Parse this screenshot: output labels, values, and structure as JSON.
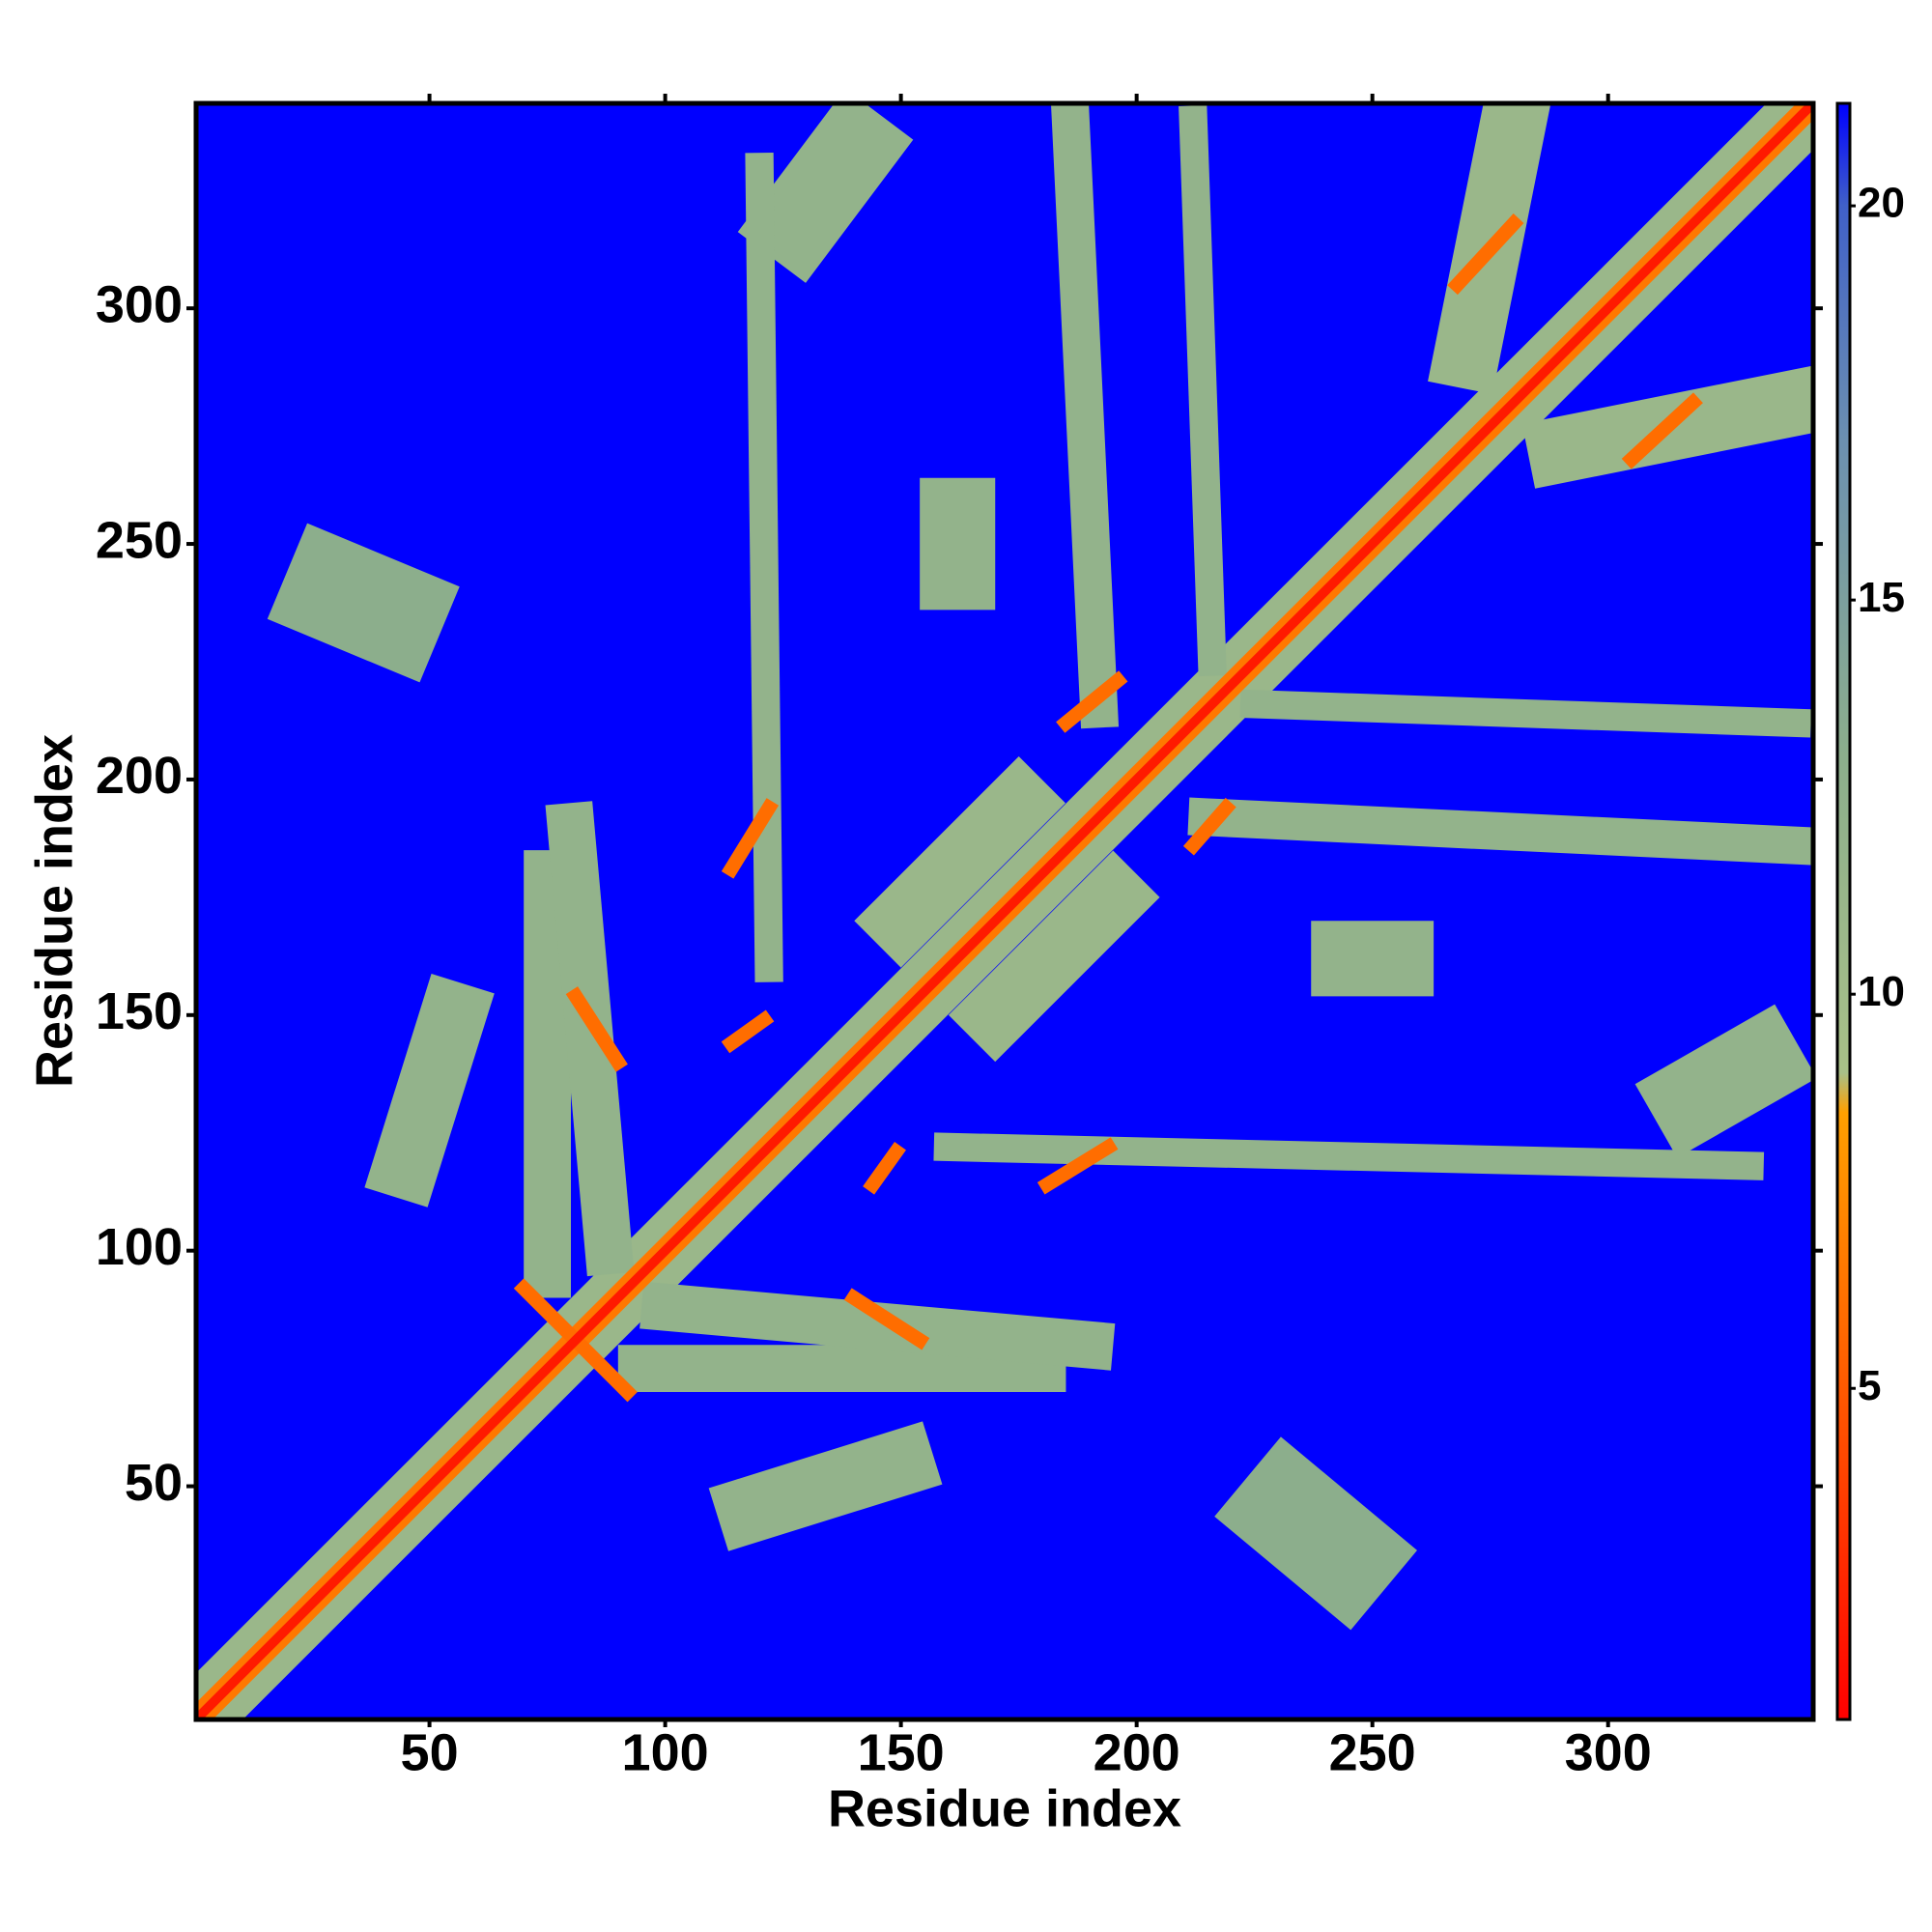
{
  "chart_data": {
    "type": "heatmap",
    "x_label": "Residue index",
    "y_label": "Residue index",
    "xlim": [
      0.5,
      343.5
    ],
    "ylim": [
      0.5,
      343.5
    ],
    "xticks": [
      50,
      100,
      150,
      200,
      250,
      300
    ],
    "yticks": [
      50,
      100,
      150,
      200,
      250,
      300
    ],
    "clim": [
      0.8,
      21.3
    ],
    "cticks": [
      5,
      10,
      15,
      20
    ],
    "colormap": [
      {
        "value": 0.8,
        "color": "#ff0000"
      },
      {
        "value": 4,
        "color": "#ff4500"
      },
      {
        "value": 8.5,
        "color": "#ffa000"
      },
      {
        "value": 9,
        "color": "#a8c088"
      },
      {
        "value": 13,
        "color": "#8cae8c"
      },
      {
        "value": 17,
        "color": "#6c90b0"
      },
      {
        "value": 20,
        "color": "#4060c8"
      },
      {
        "value": 21.3,
        "color": "#0000ff"
      }
    ],
    "patches": [
      {
        "from": [
          1,
          1
        ],
        "to": [
          343,
          343
        ],
        "width": 14,
        "value": 11
      },
      {
        "from": [
          232,
          45
        ],
        "to": [
          244,
          35
        ],
        "width": 22,
        "value": 13
      },
      {
        "from": [
          30,
          240
        ],
        "to": [
          42,
          235
        ],
        "width": 22,
        "value": 13
      },
      {
        "from": [
          245,
          162
        ],
        "to": [
          255,
          162
        ],
        "width": 16,
        "value": 12
      },
      {
        "from": [
          162,
          244
        ],
        "to": [
          162,
          256
        ],
        "width": 16,
        "value": 12
      },
      {
        "from": [
          318,
          132
        ],
        "to": [
          332,
          140
        ],
        "width": 18,
        "value": 12
      },
      {
        "from": [
          128,
          318
        ],
        "to": [
          140,
          334
        ],
        "width": 18,
        "value": 12
      },
      {
        "from": [
          160,
          122
        ],
        "to": [
          330,
          118
        ],
        "width": 6,
        "value": 12
      },
      {
        "from": [
          122,
          160
        ],
        "to": [
          120,
          330
        ],
        "width": 6,
        "value": 12
      },
      {
        "from": [
          225,
          216
        ],
        "to": [
          340,
          212
        ],
        "width": 6,
        "value": 12
      },
      {
        "from": [
          216,
          225
        ],
        "to": [
          212,
          340
        ],
        "width": 6,
        "value": 12
      },
      {
        "from": [
          215,
          192
        ],
        "to": [
          340,
          186
        ],
        "width": 8,
        "value": 12
      },
      {
        "from": [
          192,
          215
        ],
        "to": [
          186,
          340
        ],
        "width": 8,
        "value": 12
      },
      {
        "from": [
          270,
          290
        ],
        "to": [
          280,
          340
        ],
        "width": 14,
        "value": 11
      },
      {
        "from": [
          290,
          270
        ],
        "to": [
          340,
          280
        ],
        "width": 14,
        "value": 11
      },
      {
        "from": [
          75,
          95
        ],
        "to": [
          75,
          180
        ],
        "width": 10,
        "value": 12
      },
      {
        "from": [
          95,
          75
        ],
        "to": [
          180,
          75
        ],
        "width": 10,
        "value": 12
      },
      {
        "from": [
          45,
          118
        ],
        "to": [
          55,
          150
        ],
        "width": 14,
        "value": 12
      },
      {
        "from": [
          118,
          45
        ],
        "to": [
          150,
          55
        ],
        "width": 14,
        "value": 12
      },
      {
        "from": [
          100,
          88
        ],
        "to": [
          190,
          80
        ],
        "width": 10,
        "value": 12
      },
      {
        "from": [
          88,
          100
        ],
        "to": [
          80,
          190
        ],
        "width": 10,
        "value": 12
      },
      {
        "from": [
          150,
          170
        ],
        "to": [
          175,
          195
        ],
        "width": 14,
        "value": 11
      },
      {
        "from": [
          170,
          150
        ],
        "to": [
          195,
          175
        ],
        "width": 14,
        "value": 11
      },
      {
        "from": [
          1,
          1
        ],
        "to": [
          343,
          343
        ],
        "width": 5,
        "value": 6.5
      },
      {
        "from": [
          70,
          92
        ],
        "to": [
          92,
          70
        ],
        "width": 3,
        "value": 6
      },
      {
        "from": [
          268,
          305
        ],
        "to": [
          280,
          318
        ],
        "width": 3,
        "value": 6
      },
      {
        "from": [
          305,
          268
        ],
        "to": [
          318,
          280
        ],
        "width": 3,
        "value": 6
      },
      {
        "from": [
          185,
          212
        ],
        "to": [
          196,
          221
        ],
        "width": 3,
        "value": 6
      },
      {
        "from": [
          212,
          186
        ],
        "to": [
          219,
          194
        ],
        "width": 3,
        "value": 6
      },
      {
        "from": [
          114,
          181
        ],
        "to": [
          122,
          194
        ],
        "width": 3,
        "value": 6
      },
      {
        "from": [
          181,
          114
        ],
        "to": [
          194,
          122
        ],
        "width": 3,
        "value": 6
      },
      {
        "from": [
          140,
          90
        ],
        "to": [
          154,
          81
        ],
        "width": 3,
        "value": 6
      },
      {
        "from": [
          90,
          140
        ],
        "to": [
          81,
          154
        ],
        "width": 3,
        "value": 6
      },
      {
        "from": [
          114,
          144
        ],
        "to": [
          121,
          149
        ],
        "width": 3,
        "value": 6
      },
      {
        "from": [
          144,
          114
        ],
        "to": [
          149,
          121
        ],
        "width": 3,
        "value": 6
      },
      {
        "from": [
          1,
          1
        ],
        "to": [
          343,
          343
        ],
        "width": 2,
        "value": 2
      }
    ]
  }
}
